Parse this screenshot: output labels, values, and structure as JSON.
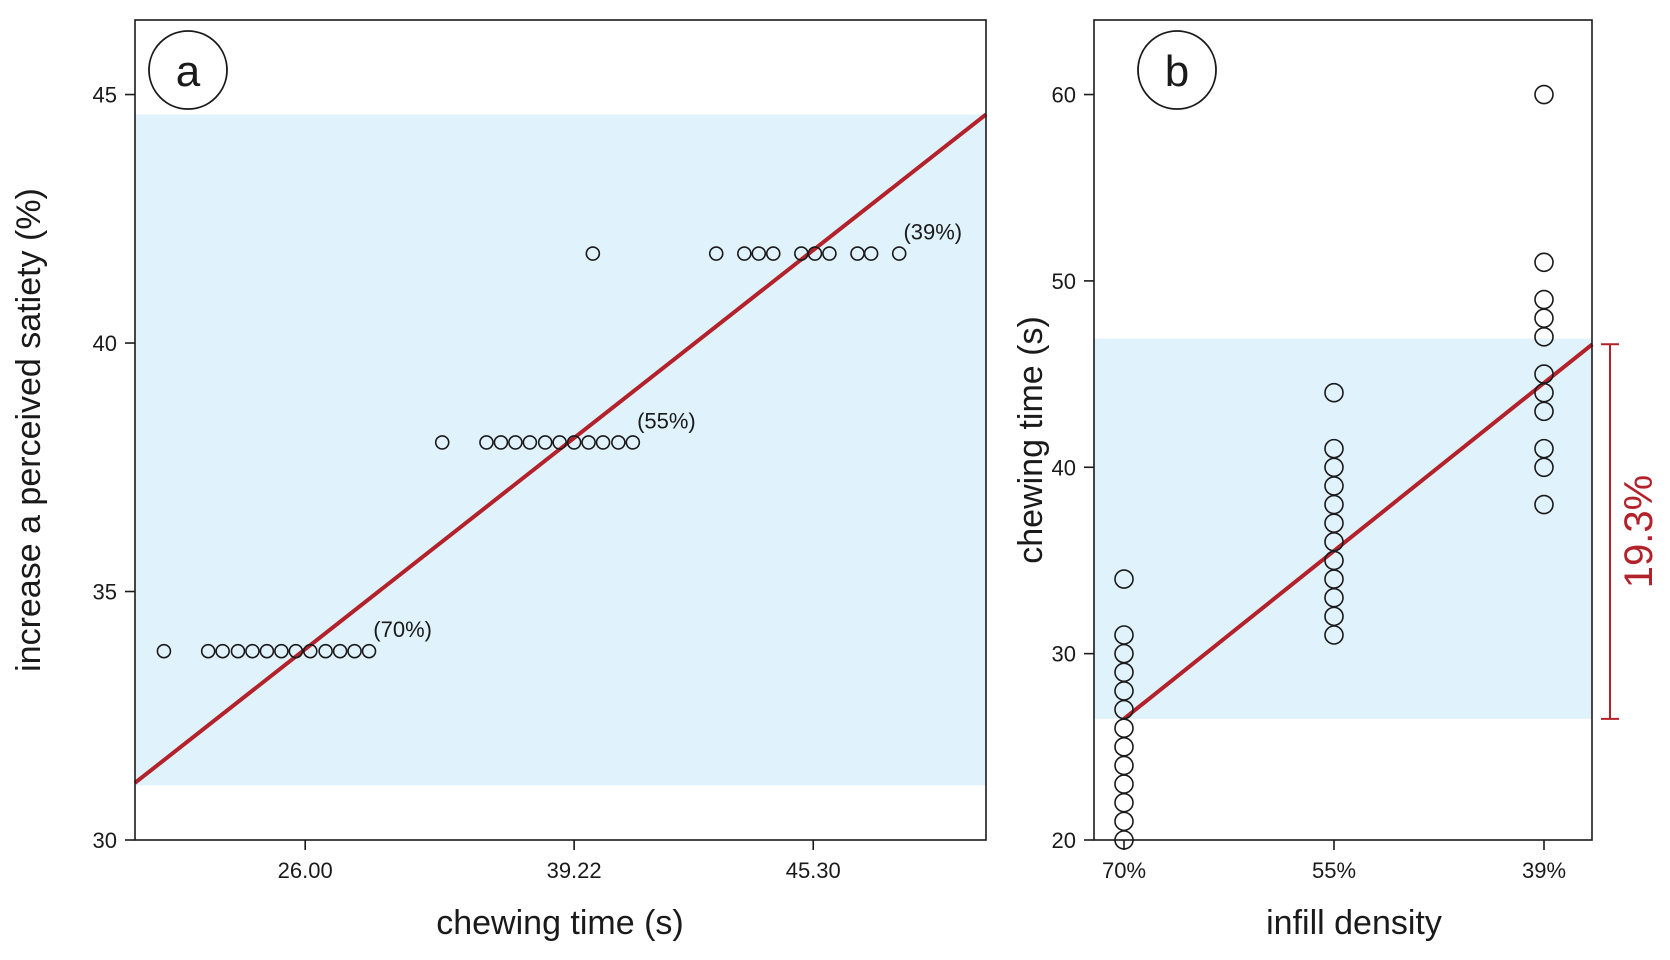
{
  "colors": {
    "band": "#e0f2fb",
    "fit_line": "#b3222a",
    "points": "#1a1a1a",
    "bracket": "#b3222a"
  },
  "chart_data": [
    {
      "panel": "a",
      "type": "scatter",
      "xlabel": "chewing time (s)",
      "ylabel": "increase a perceived satiety (%)",
      "xlim": [
        0,
        100
      ],
      "ylim": [
        30,
        46.5
      ],
      "x_ticks": [
        {
          "pos": 20.0,
          "label": "26.00"
        },
        {
          "pos": 51.6,
          "label": "39.22"
        },
        {
          "pos": 79.7,
          "label": "45.30"
        }
      ],
      "y_ticks": [
        30,
        35,
        40,
        45
      ],
      "band": {
        "y0": 31.1,
        "y1": 44.6
      },
      "fit": {
        "x0": 0,
        "y0": 31.15,
        "x1": 100,
        "y1": 44.6
      },
      "point_groups": [
        {
          "label": "(70%)",
          "y": 33.8,
          "x": [
            3.4,
            8.6,
            10.3,
            12.1,
            13.8,
            15.5,
            17.2,
            18.9,
            20.6,
            22.4,
            24.1,
            25.8,
            27.5
          ],
          "label_x": 28.0
        },
        {
          "label": "(55%)",
          "y": 38.0,
          "x": [
            36.1,
            41.3,
            43.0,
            44.7,
            46.4,
            48.2,
            49.9,
            51.6,
            53.3,
            55.0,
            56.8,
            58.5
          ],
          "label_x": 59.0
        },
        {
          "label": "",
          "y": 41.8,
          "x": [
            53.8
          ],
          "label_x": null
        },
        {
          "label": "(39%)",
          "y": 41.8,
          "x": [
            68.3,
            71.6,
            73.3,
            75.0,
            78.3,
            79.9,
            81.6,
            84.9,
            86.5,
            89.8
          ],
          "label_x": 90.3
        }
      ]
    },
    {
      "panel": "b",
      "type": "scatter",
      "xlabel": "infill density",
      "ylabel": "chewing time (s)",
      "categories": [
        "70%",
        "55%",
        "39%"
      ],
      "ylim": [
        20,
        64
      ],
      "y_ticks": [
        20,
        30,
        40,
        50,
        60
      ],
      "band": {
        "y0": 26.5,
        "y1": 46.9
      },
      "fit": {
        "x0": 0,
        "y0": 26.5,
        "x1": 2.23,
        "y1": 46.6
      },
      "bracket": {
        "y0": 26.5,
        "y1": 46.6,
        "label": "19.3%"
      },
      "series": [
        {
          "category": "70%",
          "values": [
            20,
            21,
            22,
            23,
            24,
            25,
            26,
            27,
            28,
            29,
            30,
            31,
            34
          ]
        },
        {
          "category": "55%",
          "values": [
            31,
            32,
            33,
            34,
            35,
            36,
            37,
            38,
            39,
            40,
            41,
            44
          ]
        },
        {
          "category": "39%",
          "values": [
            38,
            40,
            41,
            43,
            44,
            45,
            47,
            48,
            49,
            51,
            60
          ]
        }
      ]
    }
  ]
}
